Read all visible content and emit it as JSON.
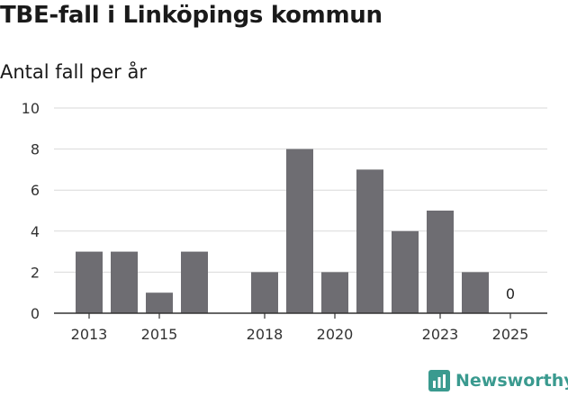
{
  "title": "TBE-fall i Linköpings kommun",
  "subtitle": "Antal fall per år",
  "brand": {
    "name": "Newsworthy",
    "icon": "bar-chart-logo-icon",
    "color": "#3a9a8f"
  },
  "colors": {
    "bar": "#6e6d72",
    "grid": "#d9d9d9",
    "axis": "#333333"
  },
  "chart_data": {
    "type": "bar",
    "title": "Antal fall per år",
    "xlabel": "",
    "ylabel": "",
    "categories": [
      2013,
      2014,
      2015,
      2016,
      2017,
      2018,
      2019,
      2020,
      2021,
      2022,
      2023,
      2024,
      2025
    ],
    "values": [
      3,
      3,
      1,
      3,
      null,
      2,
      8,
      2,
      7,
      4,
      5,
      2,
      0
    ],
    "x_tick_labels": [
      "2013",
      "2015",
      "2018",
      "2020",
      "2023",
      "2025"
    ],
    "y_ticks": [
      0,
      2,
      4,
      6,
      8,
      10
    ],
    "ylim": [
      0,
      10
    ],
    "grid": true,
    "data_labels": [
      {
        "category": 2025,
        "text": "0"
      }
    ]
  }
}
